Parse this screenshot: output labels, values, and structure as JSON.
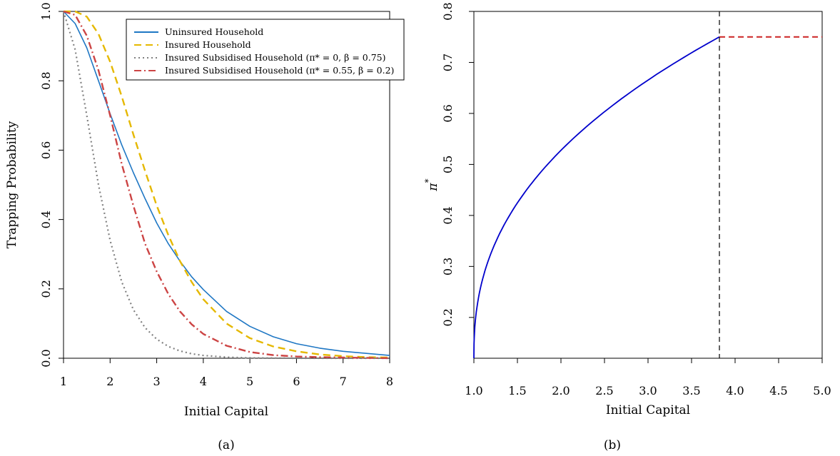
{
  "chart_data": [
    {
      "type": "line",
      "panel_label": "(a)",
      "xlabel": "Initial Capital",
      "ylabel": "Trapping Probability",
      "xlim": [
        1,
        8
      ],
      "ylim": [
        0,
        1
      ],
      "xticks": [
        "1",
        "2",
        "3",
        "4",
        "5",
        "6",
        "7",
        "8"
      ],
      "yticks": [
        "0.0",
        "0.2",
        "0.4",
        "0.6",
        "0.8",
        "1.0"
      ],
      "legend_position": "top-right",
      "colors": {
        "uninsured": "#1f77c4",
        "insured": "#e5b800",
        "subsidised_a": "#808080",
        "subsidised_b": "#cc4444"
      },
      "series": [
        {
          "key": "uninsured",
          "name": "Uninsured Household",
          "x": [
            1,
            1.25,
            1.5,
            1.75,
            2,
            2.25,
            2.5,
            2.75,
            3,
            3.25,
            3.5,
            3.75,
            4,
            4.5,
            5,
            5.5,
            6,
            6.5,
            7,
            7.5,
            8
          ],
          "y": [
            1.0,
            0.965,
            0.895,
            0.8,
            0.705,
            0.615,
            0.535,
            0.46,
            0.39,
            0.33,
            0.28,
            0.235,
            0.198,
            0.135,
            0.092,
            0.062,
            0.042,
            0.029,
            0.02,
            0.014,
            0.008
          ]
        },
        {
          "key": "insured",
          "name": "Insured Household",
          "x": [
            1,
            1.25,
            1.5,
            1.75,
            2,
            2.25,
            2.5,
            2.75,
            3,
            3.25,
            3.5,
            3.75,
            4,
            4.5,
            5,
            5.5,
            6,
            6.5,
            7,
            7.5,
            8
          ],
          "y": [
            1.0,
            1.0,
            0.985,
            0.935,
            0.855,
            0.755,
            0.645,
            0.54,
            0.44,
            0.355,
            0.28,
            0.22,
            0.17,
            0.1,
            0.058,
            0.034,
            0.02,
            0.011,
            0.006,
            0.003,
            0.002
          ]
        },
        {
          "key": "subsidised_a",
          "name": "Insured Subsidised Household (π* = 0, β = 0.75)",
          "x": [
            1,
            1.25,
            1.5,
            1.75,
            2,
            2.25,
            2.5,
            2.75,
            3,
            3.25,
            3.5,
            3.75,
            4,
            4.5,
            5,
            5.5,
            6,
            7,
            8
          ],
          "y": [
            1.0,
            0.89,
            0.7,
            0.5,
            0.34,
            0.22,
            0.14,
            0.088,
            0.055,
            0.034,
            0.021,
            0.013,
            0.008,
            0.003,
            0.001,
            0.0005,
            0.0,
            0.0,
            0.0
          ]
        },
        {
          "key": "subsidised_b",
          "name": "Insured Subsidised Household (π* = 0.55, β = 0.2)",
          "x": [
            1,
            1.25,
            1.5,
            1.75,
            2,
            2.25,
            2.5,
            2.75,
            3,
            3.25,
            3.5,
            3.75,
            4,
            4.5,
            5,
            5.5,
            6,
            6.5,
            7,
            7.5,
            8
          ],
          "y": [
            1.0,
            0.99,
            0.93,
            0.83,
            0.7,
            0.56,
            0.44,
            0.33,
            0.25,
            0.185,
            0.135,
            0.098,
            0.07,
            0.036,
            0.018,
            0.009,
            0.005,
            0.003,
            0.002,
            0.001,
            0.0
          ]
        }
      ]
    },
    {
      "type": "line",
      "panel_label": "(b)",
      "xlabel": "Initial Capital",
      "ylabel": "π",
      "ylabel_superscript": "*",
      "xlim": [
        1,
        5
      ],
      "ylim": [
        0.12,
        0.8
      ],
      "xticks": [
        "1.0",
        "1.5",
        "2.0",
        "2.5",
        "3.0",
        "3.5",
        "4.0",
        "4.5",
        "5.0"
      ],
      "yticks": [
        "0.2",
        "0.3",
        "0.4",
        "0.5",
        "0.6",
        "0.7",
        "0.8"
      ],
      "threshold_x": 3.82,
      "plateau_y": 0.75,
      "colors": {
        "curve": "#0000cc",
        "plateau": "#cc2222",
        "threshold": "#000000"
      }
    }
  ]
}
